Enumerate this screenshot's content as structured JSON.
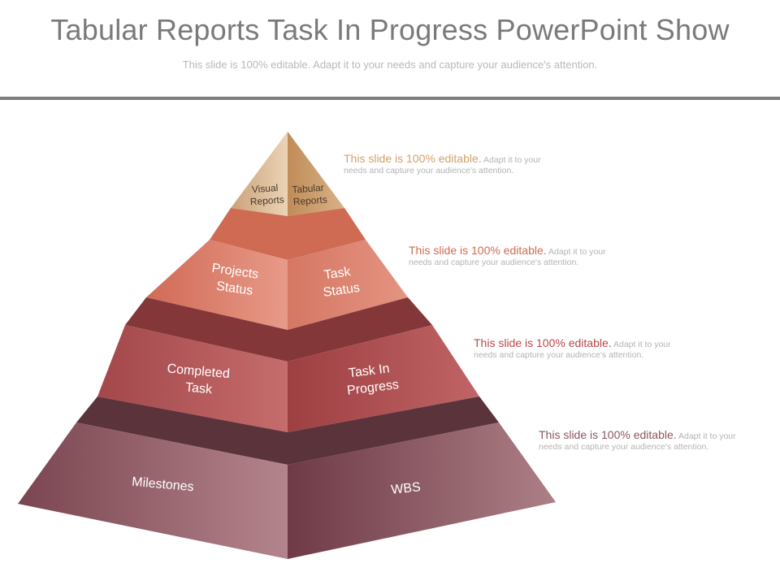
{
  "slide": {
    "title": "Tabular Reports Task In Progress PowerPoint Show",
    "subtitle": "This slide is 100% editable. Adapt it to your needs and capture your audience's attention."
  },
  "pyramid": {
    "tiers": [
      {
        "left_label_lines": [
          "Visual",
          "Reports"
        ],
        "right_label_lines": [
          "Tabular",
          "Reports"
        ]
      },
      {
        "left_label_lines": [
          "Projects",
          "Status"
        ],
        "right_label_lines": [
          "Task",
          "Status"
        ]
      },
      {
        "left_label_lines": [
          "Completed",
          "Task"
        ],
        "right_label_lines": [
          "Task In",
          "Progress"
        ]
      },
      {
        "left_label_lines": [
          "Milestones"
        ],
        "right_label_lines": [
          "WBS"
        ]
      }
    ]
  },
  "notes": [
    {
      "lead": "This slide is 100% editable.",
      "body": "Adapt it to your needs and capture your audience's attention."
    },
    {
      "lead": "This slide is 100% editable.",
      "body": "Adapt it to your needs and capture your audience's attention."
    },
    {
      "lead": "This slide is 100% editable.",
      "body": "Adapt it to your needs and capture your audience's attention."
    },
    {
      "lead": "This slide is 100% editable.",
      "body": "Adapt it to your needs and capture your audience's attention."
    }
  ],
  "colors": {
    "title_text": "#7a7a7a",
    "tier1": "#d4ad80",
    "tier2": "#d97b68",
    "tier3": "#b5585a",
    "tier4": "#8e5b66"
  }
}
